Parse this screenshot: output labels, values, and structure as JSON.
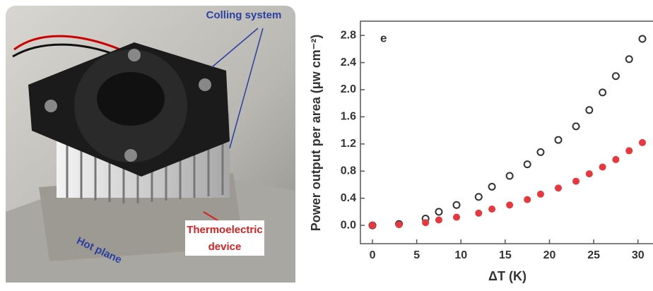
{
  "photo": {
    "labels": {
      "cooling": "Colling system",
      "device": [
        "Thermoelectric",
        "device"
      ],
      "plate": "Hot plane"
    }
  },
  "chart_data": {
    "type": "scatter",
    "panel_label": "e",
    "x_label": "ΔT (K)",
    "y_label": "Power output per area (μw cm⁻²)",
    "xlim": [
      -1.36,
      31.7
    ],
    "ylim": [
      -0.27,
      3.01
    ],
    "xticks": [
      0,
      5,
      10,
      15,
      20,
      25,
      30
    ],
    "yticks": [
      {
        "value": 0,
        "label": "0.0"
      },
      0.4,
      0.8,
      1.2,
      1.6,
      {
        "value": 2,
        "label": "2.0"
      },
      2.4,
      2.8
    ],
    "series": [
      {
        "color": "#333333",
        "marker": "open-circle",
        "x": [
          0,
          3,
          6,
          7.5,
          9.5,
          12,
          13.5,
          15.5,
          17.5,
          19,
          21,
          23,
          24.5,
          26,
          27.5,
          29,
          30.5
        ],
        "values": [
          0,
          0.02,
          0.1,
          0.2,
          0.3,
          0.42,
          0.57,
          0.73,
          0.9,
          1.08,
          1.26,
          1.46,
          1.7,
          1.96,
          2.2,
          2.45,
          2.75
        ]
      },
      {
        "color": "#e8383d",
        "marker": "filled-circle",
        "x": [
          0,
          3,
          6,
          7.5,
          9.5,
          12,
          13.5,
          15.5,
          17.5,
          19,
          21,
          23,
          24.5,
          26,
          27.5,
          29,
          30.5
        ],
        "values": [
          0,
          0.01,
          0.04,
          0.08,
          0.12,
          0.18,
          0.24,
          0.3,
          0.38,
          0.46,
          0.55,
          0.65,
          0.76,
          0.86,
          0.97,
          1.1,
          1.22
        ]
      }
    ]
  }
}
